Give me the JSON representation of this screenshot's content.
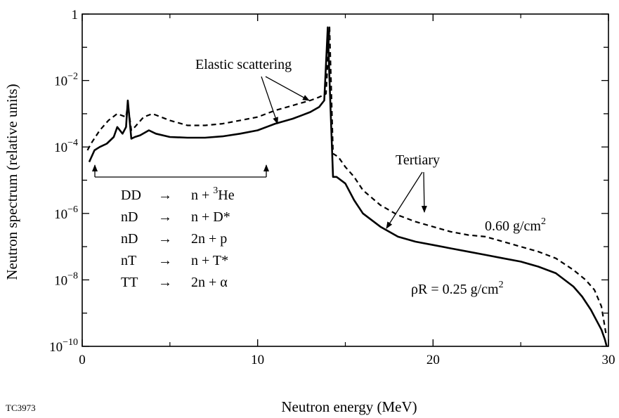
{
  "figure_id": "TC3973",
  "chart_data": {
    "type": "line",
    "xlabel": "Neutron energy (MeV)",
    "ylabel": "Neutron spectrum (relative units)",
    "xlim": [
      0,
      30
    ],
    "ylim_log10": [
      -10,
      0
    ],
    "y_scale": "log",
    "x_ticks": [
      {
        "value": 0,
        "label": "0"
      },
      {
        "value": 10,
        "label": "10"
      },
      {
        "value": 20,
        "label": "20"
      },
      {
        "value": 30,
        "label": "30"
      }
    ],
    "y_ticks": [
      {
        "exp": 0,
        "base": "1",
        "sup": ""
      },
      {
        "exp": -2,
        "base": "10",
        "sup": "−2"
      },
      {
        "exp": -4,
        "base": "10",
        "sup": "−4"
      },
      {
        "exp": -6,
        "base": "10",
        "sup": "−6"
      },
      {
        "exp": -8,
        "base": "10",
        "sup": "−8"
      },
      {
        "exp": -10,
        "base": "10",
        "sup": "−10"
      }
    ],
    "series": [
      {
        "label_base": "ρR = 0.25 g/cm",
        "label_sup": "2",
        "style": "solid",
        "x": [
          0.4,
          0.7,
          1.0,
          1.4,
          1.8,
          2.0,
          2.3,
          2.5,
          2.6,
          2.8,
          3.0,
          3.3,
          3.8,
          4.2,
          5.0,
          6.0,
          7.0,
          8.0,
          9.0,
          10.0,
          11.0,
          12.0,
          12.5,
          13.0,
          13.5,
          13.8,
          14.0,
          14.1,
          14.3,
          14.5,
          15.0,
          15.5,
          16.0,
          17.0,
          18.0,
          19.0,
          20.0,
          21.0,
          22.0,
          23.0,
          24.0,
          25.0,
          26.0,
          27.0,
          28.0,
          28.5,
          29.0,
          29.3,
          29.6,
          29.8,
          29.9
        ],
        "log10_y": [
          -4.45,
          -4.1,
          -4.0,
          -3.9,
          -3.7,
          -3.4,
          -3.6,
          -3.4,
          -2.6,
          -3.75,
          -3.7,
          -3.65,
          -3.5,
          -3.6,
          -3.7,
          -3.72,
          -3.72,
          -3.68,
          -3.6,
          -3.5,
          -3.3,
          -3.15,
          -3.05,
          -2.95,
          -2.8,
          -2.6,
          -0.4,
          -2.0,
          -4.9,
          -4.9,
          -5.1,
          -5.6,
          -6.0,
          -6.4,
          -6.7,
          -6.85,
          -6.95,
          -7.05,
          -7.15,
          -7.25,
          -7.35,
          -7.45,
          -7.6,
          -7.8,
          -8.2,
          -8.5,
          -8.9,
          -9.2,
          -9.5,
          -9.8,
          -10.0
        ]
      },
      {
        "label_base": "0.60 g/cm",
        "label_sup": "2",
        "style": "dashed",
        "x": [
          0.3,
          0.5,
          1.0,
          1.5,
          2.0,
          2.5,
          2.6,
          2.8,
          3.0,
          3.5,
          4.0,
          5.0,
          6.0,
          7.0,
          8.0,
          9.0,
          10.0,
          11.0,
          12.0,
          13.0,
          13.5,
          13.9,
          14.1,
          14.3,
          14.6,
          15.0,
          15.5,
          16.0,
          17.0,
          18.0,
          19.0,
          20.0,
          21.0,
          22.0,
          23.0,
          24.0,
          25.0,
          26.0,
          27.0,
          28.0,
          28.7,
          29.2,
          29.6,
          29.85
        ],
        "log10_y": [
          -4.1,
          -3.9,
          -3.5,
          -3.2,
          -3.0,
          -3.1,
          -2.7,
          -3.5,
          -3.4,
          -3.1,
          -3.0,
          -3.2,
          -3.35,
          -3.35,
          -3.3,
          -3.2,
          -3.1,
          -2.9,
          -2.75,
          -2.6,
          -2.5,
          -2.4,
          -0.4,
          -4.2,
          -4.3,
          -4.6,
          -4.9,
          -5.3,
          -5.75,
          -6.05,
          -6.25,
          -6.4,
          -6.55,
          -6.65,
          -6.7,
          -6.85,
          -7.0,
          -7.15,
          -7.35,
          -7.7,
          -8.0,
          -8.3,
          -8.8,
          -9.6
        ]
      }
    ],
    "annotations": {
      "elastic": "Elastic scattering",
      "tertiary": "Tertiary",
      "reactions": [
        {
          "left": "DD",
          "arrow": "→",
          "right": "n + ",
          "sup": "3",
          "tail": "He"
        },
        {
          "left": "nD",
          "arrow": "→",
          "right": "n + D*",
          "sup": "",
          "tail": ""
        },
        {
          "left": "nD",
          "arrow": "→",
          "right": "2n + p",
          "sup": "",
          "tail": ""
        },
        {
          "left": "nT",
          "arrow": "→",
          "right": "n + T*",
          "sup": "",
          "tail": ""
        },
        {
          "left": "TT",
          "arrow": "→",
          "right": "2n + α",
          "sup": "",
          "tail": ""
        }
      ]
    }
  }
}
